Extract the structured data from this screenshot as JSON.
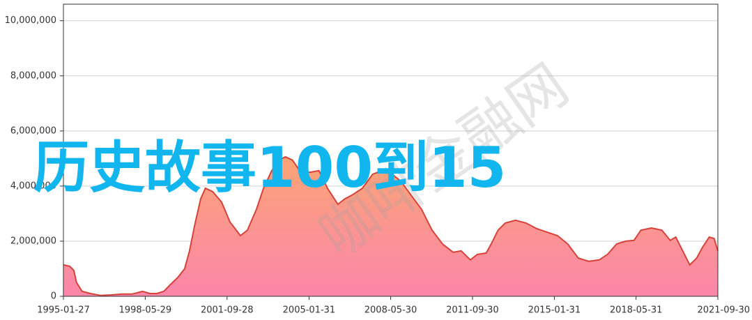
{
  "chart_data": {
    "type": "area",
    "annotation": "历史故事100到15",
    "watermark": "咖啡金融网",
    "x": [
      "1995-01-27",
      "1995-04-30",
      "1995-07-01",
      "1995-08-10",
      "1995-11-01",
      "1996-03-05",
      "1996-08-07",
      "1997-01-10",
      "1997-06-15",
      "1997-11-15",
      "1998-04-20",
      "1998-08-05",
      "1998-11-15",
      "1999-03-01",
      "1999-06-10",
      "1999-09-25",
      "2000-01-05",
      "2000-03-18",
      "2000-06-10",
      "2000-09-01",
      "2000-11-10",
      "2001-02-25",
      "2001-07-08",
      "2001-11-10",
      "2002-04-15",
      "2002-07-28",
      "2002-12-10",
      "2003-03-25",
      "2003-07-25",
      "2003-11-05",
      "2004-02-15",
      "2004-05-30",
      "2004-09-12",
      "2005-02-15",
      "2005-06-28",
      "2005-11-01",
      "2006-04-05",
      "2006-07-20",
      "2006-11-01",
      "2007-04-05",
      "2007-09-05",
      "2008-01-20",
      "2008-05-25",
      "2008-10-28",
      "2009-03-30",
      "2009-09-01",
      "2010-02-05",
      "2010-07-10",
      "2010-12-15",
      "2011-04-15",
      "2011-08-30",
      "2011-12-10",
      "2012-04-22",
      "2012-07-05",
      "2012-10-15",
      "2013-01-30",
      "2013-07-01",
      "2013-12-05",
      "2014-05-10",
      "2014-10-12",
      "2015-03-18",
      "2015-08-18",
      "2016-01-22",
      "2016-06-25",
      "2016-11-28",
      "2017-04-01",
      "2017-08-15",
      "2017-12-28",
      "2018-05-01",
      "2018-08-12",
      "2019-01-15",
      "2019-06-20",
      "2019-10-22",
      "2020-01-12",
      "2020-04-25",
      "2020-08-08",
      "2020-11-20",
      "2021-02-12",
      "2021-05-25",
      "2021-08-05",
      "2021-09-30"
    ],
    "values": [
      1140000,
      1090000,
      940000,
      500000,
      180000,
      100000,
      30000,
      50000,
      80000,
      80000,
      180000,
      100000,
      100000,
      180000,
      430000,
      680000,
      1000000,
      1650000,
      2660000,
      3540000,
      3920000,
      3800000,
      3420000,
      2700000,
      2200000,
      2400000,
      3160000,
      3920000,
      4560000,
      4940000,
      5060000,
      4940000,
      4560000,
      4500000,
      4560000,
      3920000,
      3340000,
      3540000,
      3670000,
      3920000,
      4430000,
      4560000,
      4480000,
      4180000,
      3670000,
      3160000,
      2400000,
      1900000,
      1600000,
      1650000,
      1320000,
      1520000,
      1570000,
      1900000,
      2400000,
      2660000,
      2760000,
      2660000,
      2460000,
      2330000,
      2200000,
      1900000,
      1390000,
      1270000,
      1320000,
      1520000,
      1900000,
      2000000,
      2030000,
      2400000,
      2480000,
      2400000,
      2030000,
      2150000,
      1650000,
      1140000,
      1390000,
      1770000,
      2150000,
      2100000,
      1650000
    ],
    "color": "#d6423a",
    "fill_colors": [
      "#fba476",
      "#fb86aa"
    ],
    "xlim": [
      "1995-01-27",
      "2021-09-30"
    ],
    "xticks": [
      "1995-01-27",
      "1998-05-29",
      "2001-09-28",
      "2005-01-31",
      "2008-05-30",
      "2011-09-30",
      "2015-01-31",
      "2018-05-31",
      "2021-09-30"
    ],
    "ylim": [
      0,
      10600000
    ],
    "yticks": [
      0,
      {
        "value": 2000000,
        "label": "2,000,000"
      },
      {
        "value": 4000000,
        "label": "4,000,000"
      },
      {
        "value": 6000000,
        "label": "6,000,000"
      },
      {
        "value": 8000000,
        "label": "8,000,000"
      },
      {
        "value": 10000000,
        "label": "10,000,000"
      }
    ],
    "grid": true
  }
}
